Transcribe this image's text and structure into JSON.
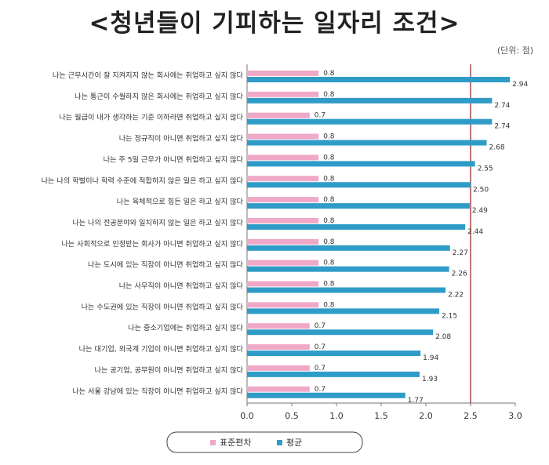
{
  "title": "<청년들이 기피하는 일자리 조건>",
  "unit_note": "(단위: 점)",
  "chart_data": {
    "type": "bar",
    "orientation": "horizontal",
    "categories": [
      "나는 근무시간이 잘 지켜지지 않는 회사에는 취업하고 싶지 않다",
      "나는 통근이 수월하지 않은 회사에는 취업하고 싶지 않다",
      "나는 월급이 내가 생각하는 기준 이하라면 취업하고 싶지 않다",
      "나는 정규직이 아니면 취업하고 싶지 않다",
      "나는 주 5일 근무가 아니면 취업하고 싶지 않다",
      "나는 나의 학벌이나 학력 수준에 적합하지 않은 일은 하고 싶지 않다",
      "나는 육체적으로 힘든 일은 하고 싶지 않다",
      "나는 나의 전공분야와 일치하지 않는 일은 하고 싶지 않다",
      "나는 사회적으로 인정받는 회사가 아니면 취업하고 싶지 않다",
      "나는 도시에 있는 직장이 아니면 취업하고 싶지 않다",
      "나는 사무직이 아니면 취업하고 싶지 않다",
      "나는 수도권에 있는 직장이 아니면 취업하고 싶지 않다",
      "나는 중소기업에는 취업하고 싶지 않다",
      "나는 대기업, 외국계 기업이 아니면 취업하고 싶지 않다",
      "나는 공기업, 공무원이 아니면 취업하고 싶지 않다",
      "나는 서울 강남에 있는 직장이 아니면 취업하고 싶지 않다"
    ],
    "series": [
      {
        "name": "표준편차",
        "color": "#f0a8c8",
        "values": [
          0.8,
          0.8,
          0.7,
          0.8,
          0.8,
          0.8,
          0.8,
          0.8,
          0.8,
          0.8,
          0.8,
          0.8,
          0.7,
          0.7,
          0.7,
          0.7
        ],
        "labels": [
          "0.8",
          "0.8",
          "0.7",
          "0.8",
          "0.8",
          "0.8",
          "0.8",
          "0.8",
          "0.8",
          "0.8",
          "0.8",
          "0.8",
          "0.7",
          "0.7",
          "0.7",
          "0.7"
        ]
      },
      {
        "name": "평균",
        "color": "#2f9cc8",
        "values": [
          2.94,
          2.74,
          2.74,
          2.68,
          2.55,
          2.5,
          2.49,
          2.44,
          2.27,
          2.26,
          2.22,
          2.15,
          2.08,
          1.94,
          1.93,
          1.77
        ],
        "labels": [
          "2.94",
          "2.74",
          "2.74",
          "2.68",
          "2.55",
          "2.50",
          "2.49",
          "2.44",
          "2.27",
          "2.26",
          "2.22",
          "2.15",
          "2.08",
          "1.94",
          "1.93",
          "1.77"
        ]
      }
    ],
    "xlim": [
      0,
      3.0
    ],
    "xticks": [
      "0.0",
      "0.5",
      "1.0",
      "1.5",
      "2.0",
      "2.5",
      "3.0"
    ],
    "reference_line": 2.5,
    "reference_color": "#8b1a1a",
    "legend_position": "bottom-center",
    "grid": false
  }
}
